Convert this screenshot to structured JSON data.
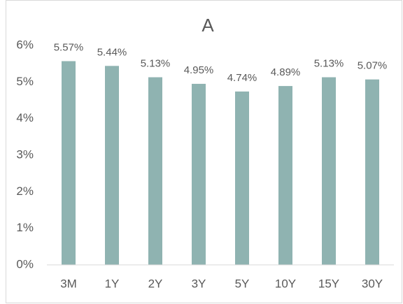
{
  "chart_data": {
    "type": "bar",
    "title": "A",
    "categories": [
      "3M",
      "1Y",
      "2Y",
      "3Y",
      "5Y",
      "10Y",
      "15Y",
      "30Y"
    ],
    "values": [
      5.57,
      5.44,
      5.13,
      4.95,
      4.74,
      4.89,
      5.13,
      5.07
    ],
    "value_labels": [
      "5.57%",
      "5.44%",
      "5.13%",
      "4.95%",
      "4.74%",
      "4.89%",
      "5.13%",
      "5.07%"
    ],
    "color": "#8fb3b1",
    "ylim": [
      0,
      6
    ],
    "yticks": [
      {
        "value": 0,
        "label": "0%"
      },
      {
        "value": 1,
        "label": "1%"
      },
      {
        "value": 2,
        "label": "2%"
      },
      {
        "value": 3,
        "label": "3%"
      },
      {
        "value": 4,
        "label": "4%"
      },
      {
        "value": 5,
        "label": "5%"
      },
      {
        "value": 6,
        "label": "6%"
      }
    ],
    "grid": false
  }
}
